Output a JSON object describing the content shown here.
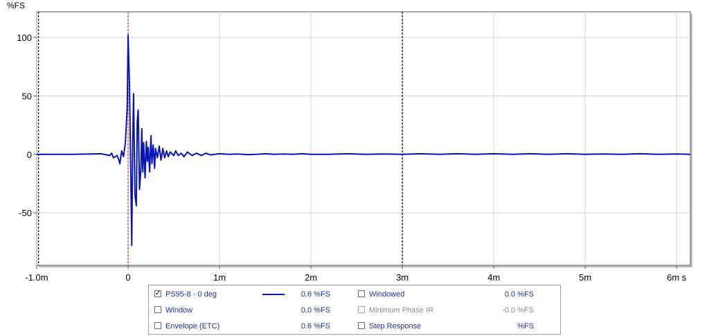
{
  "chart_data": {
    "type": "line",
    "ylabel": "%FS",
    "xlim": [
      -1.0,
      6.15
    ],
    "ylim": [
      -95,
      122
    ],
    "xticks": [
      {
        "v": -1.0,
        "label": "-1.0m"
      },
      {
        "v": 0,
        "label": "0"
      },
      {
        "v": 1,
        "label": "1m"
      },
      {
        "v": 2,
        "label": "2m"
      },
      {
        "v": 3,
        "label": "3m"
      },
      {
        "v": 4,
        "label": "4m"
      },
      {
        "v": 5,
        "label": "5m"
      },
      {
        "v": 6,
        "label": "6m s"
      }
    ],
    "yticks": [
      {
        "v": 100,
        "label": "100"
      },
      {
        "v": 50,
        "label": "50"
      },
      {
        "v": 0,
        "label": "0"
      },
      {
        "v": -50,
        "label": "-50"
      }
    ],
    "markers": [
      {
        "x": -0.98,
        "color": "#000000"
      },
      {
        "x": 0.0,
        "color": "#e02020"
      },
      {
        "x": 3.0,
        "color": "#000000"
      }
    ],
    "series": [
      {
        "name": "PS95-8 - 0 deg",
        "color": "#0a14b4",
        "x": [
          -1.0,
          -0.9,
          -0.6,
          -0.3,
          -0.2,
          -0.18,
          -0.16,
          -0.12,
          -0.1,
          -0.09,
          -0.07,
          -0.05,
          -0.03,
          -0.01,
          0.0,
          0.015,
          0.03,
          0.04,
          0.05,
          0.06,
          0.075,
          0.09,
          0.1,
          0.11,
          0.125,
          0.14,
          0.15,
          0.16,
          0.17,
          0.185,
          0.2,
          0.21,
          0.22,
          0.235,
          0.25,
          0.26,
          0.275,
          0.29,
          0.3,
          0.32,
          0.34,
          0.36,
          0.38,
          0.4,
          0.42,
          0.44,
          0.46,
          0.48,
          0.5,
          0.52,
          0.55,
          0.58,
          0.61,
          0.65,
          0.7,
          0.75,
          0.8,
          0.85,
          0.9,
          1.0,
          1.1,
          1.2,
          1.3,
          1.4,
          1.5,
          1.6,
          1.7,
          1.8,
          1.9,
          2.0,
          2.2,
          2.4,
          2.6,
          2.8,
          3.0,
          3.2,
          3.4,
          3.6,
          3.8,
          4.0,
          4.2,
          4.4,
          4.6,
          4.8,
          5.0,
          5.2,
          5.4,
          5.6,
          5.8,
          6.0,
          6.15
        ],
        "y": [
          0,
          0,
          0,
          0.5,
          -1,
          1,
          -3,
          -1,
          -5,
          -8,
          3,
          -2,
          10,
          40,
          102,
          60,
          -20,
          -78,
          8,
          52,
          -35,
          -44,
          28,
          38,
          -30,
          -12,
          22,
          -15,
          10,
          -20,
          11,
          -6,
          6,
          -15,
          16,
          -8,
          8,
          -12,
          5,
          -3,
          7,
          -5,
          5,
          -3,
          3,
          -2,
          2,
          0.5,
          -1,
          3,
          -1,
          1,
          -2,
          2,
          -1,
          1,
          -1,
          1,
          -0.5,
          0.5,
          0,
          0.3,
          -0.3,
          0,
          0.5,
          0,
          0.3,
          0,
          0.5,
          0,
          0,
          0.5,
          0,
          0.3,
          0,
          0.5,
          0,
          0.5,
          0,
          0.5,
          0,
          0.5,
          0,
          0.5,
          0,
          0.3,
          0,
          0.5,
          0,
          0.3,
          0
        ]
      }
    ]
  },
  "legend": {
    "rows": [
      [
        {
          "label": "PS95-8 - 0 deg",
          "checked": true,
          "disabled": false,
          "value": "0.6 %FS",
          "swatch": true
        },
        {
          "label": "Windowed",
          "checked": false,
          "disabled": false,
          "value": "0.0 %FS"
        }
      ],
      [
        {
          "label": "Window",
          "checked": false,
          "disabled": false,
          "value": "0.0 %FS"
        },
        {
          "label": "Minimum Phase IR",
          "checked": false,
          "disabled": true,
          "value": "-0.0 %FS"
        }
      ],
      [
        {
          "label": "Envelope (ETC)",
          "checked": false,
          "disabled": false,
          "value": "0.6 %FS"
        },
        {
          "label": "Step Response",
          "checked": false,
          "disabled": false,
          "value": "%FS"
        }
      ]
    ]
  }
}
